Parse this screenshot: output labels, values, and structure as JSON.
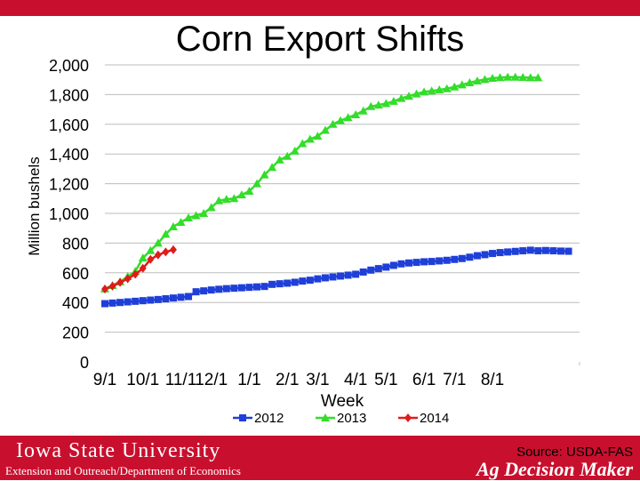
{
  "colors": {
    "brand": "#c8102e",
    "s2012": "#1f3fd9",
    "s2013": "#33dd2a",
    "s2014": "#e01b1b"
  },
  "chart_data": {
    "type": "line",
    "title": "Corn Export Shifts",
    "xlabel": "Week",
    "ylabel": "Million bushels",
    "ylim": [
      0,
      2000
    ],
    "yticks": [
      "0",
      "200",
      "400",
      "600",
      "800",
      "1,000",
      "1,200",
      "1,400",
      "1,600",
      "1,800",
      "2,000"
    ],
    "xticks": [
      "9/1",
      "10/1",
      "11/1",
      "12/1",
      "1/1",
      "2/1",
      "3/1",
      "4/1",
      "5/1",
      "6/1",
      "7/1",
      "8/1"
    ],
    "grid": true,
    "legend": "bottom",
    "series": [
      {
        "name": "2012",
        "marker": "square",
        "color": "#1f3fd9",
        "values": [
          392,
          396,
          400,
          404,
          408,
          412,
          416,
          420,
          425,
          430,
          435,
          440,
          472,
          478,
          484,
          489,
          493,
          496,
          499,
          502,
          505,
          508,
          522,
          526,
          530,
          536,
          544,
          550,
          559,
          566,
          572,
          578,
          584,
          590,
          605,
          618,
          628,
          638,
          650,
          660,
          666,
          670,
          674,
          676,
          680,
          684,
          690,
          696,
          705,
          715,
          722,
          730,
          736,
          740,
          744,
          748,
          752,
          748,
          750,
          748,
          746,
          745
        ]
      },
      {
        "name": "2013",
        "marker": "triangle",
        "color": "#33dd2a",
        "values": [
          492,
          515,
          540,
          575,
          610,
          700,
          750,
          800,
          860,
          910,
          940,
          970,
          985,
          1000,
          1040,
          1085,
          1095,
          1100,
          1125,
          1150,
          1200,
          1260,
          1310,
          1360,
          1385,
          1420,
          1470,
          1500,
          1520,
          1560,
          1600,
          1625,
          1645,
          1665,
          1690,
          1720,
          1730,
          1740,
          1755,
          1775,
          1790,
          1805,
          1818,
          1825,
          1832,
          1840,
          1852,
          1866,
          1880,
          1892,
          1902,
          1910,
          1915,
          1918,
          1918,
          1916,
          1914,
          1914
        ]
      },
      {
        "name": "2014",
        "marker": "diamond",
        "color": "#e01b1b",
        "values": [
          490,
          510,
          535,
          560,
          590,
          630,
          690,
          720,
          740,
          755
        ]
      }
    ]
  },
  "footer": {
    "university": "Iowa State University",
    "department": "Extension and Outreach/Department of Economics",
    "source": "Source: USDA-FAS",
    "brand": "Ag Decision Maker"
  }
}
